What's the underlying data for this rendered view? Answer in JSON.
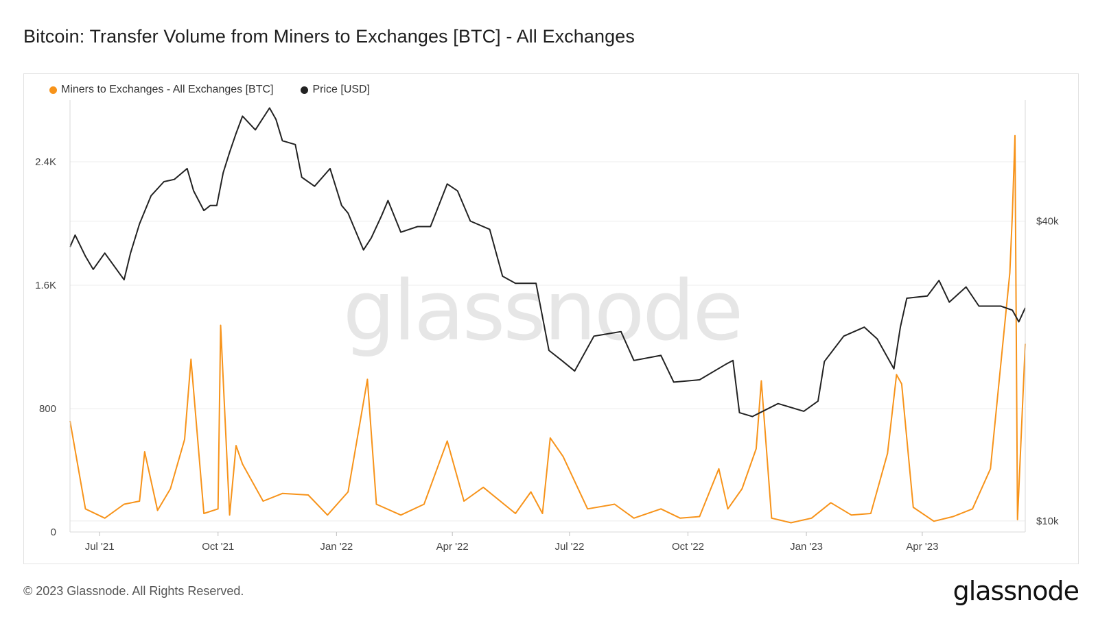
{
  "title": "Bitcoin: Transfer Volume from Miners to Exchanges [BTC] - All Exchanges",
  "legend": {
    "series_a": "Miners to Exchanges - All Exchanges [BTC]",
    "series_b": "Price [USD]"
  },
  "watermark": "glassnode",
  "footer": {
    "copyright": "© 2023 Glassnode. All Rights Reserved.",
    "brand": "glassnode"
  },
  "colors": {
    "volume": "#f7931a",
    "price": "#222222",
    "grid": "#ececec"
  },
  "chart_data": {
    "type": "line",
    "x_range": [
      "2021-06-08",
      "2023-06-20"
    ],
    "x_ticks": [
      {
        "label": "Jul '21",
        "date": "2021-07-01"
      },
      {
        "label": "Oct '21",
        "date": "2021-10-01"
      },
      {
        "label": "Jan '22",
        "date": "2022-01-01"
      },
      {
        "label": "Apr '22",
        "date": "2022-04-01"
      },
      {
        "label": "Jul '22",
        "date": "2022-07-01"
      },
      {
        "label": "Oct '22",
        "date": "2022-10-01"
      },
      {
        "label": "Jan '23",
        "date": "2023-01-01"
      },
      {
        "label": "Apr '23",
        "date": "2023-04-01"
      }
    ],
    "y_left": {
      "ticks": [
        "0",
        "800",
        "1.6K",
        "2.4K"
      ],
      "tick_values": [
        0,
        800,
        1600,
        2400
      ],
      "range": [
        0,
        2800
      ]
    },
    "y_right": {
      "ticks": [
        "$10k",
        "$40k"
      ],
      "tick_values": [
        10000,
        40000
      ],
      "scale": "log",
      "range": [
        9500,
        70000
      ]
    },
    "series": [
      {
        "name": "Miners to Exchanges - All Exchanges [BTC]",
        "axis": "left",
        "points": [
          [
            "2021-06-08",
            720
          ],
          [
            "2021-06-20",
            150
          ],
          [
            "2021-07-05",
            90
          ],
          [
            "2021-07-20",
            180
          ],
          [
            "2021-08-01",
            200
          ],
          [
            "2021-08-05",
            520
          ],
          [
            "2021-08-15",
            140
          ],
          [
            "2021-08-25",
            280
          ],
          [
            "2021-09-05",
            600
          ],
          [
            "2021-09-10",
            1120
          ],
          [
            "2021-09-20",
            120
          ],
          [
            "2021-10-01",
            150
          ],
          [
            "2021-10-03",
            1340
          ],
          [
            "2021-10-10",
            110
          ],
          [
            "2021-10-15",
            560
          ],
          [
            "2021-10-20",
            440
          ],
          [
            "2021-11-05",
            200
          ],
          [
            "2021-11-20",
            250
          ],
          [
            "2021-12-10",
            240
          ],
          [
            "2021-12-25",
            110
          ],
          [
            "2022-01-10",
            260
          ],
          [
            "2022-01-25",
            990
          ],
          [
            "2022-02-01",
            180
          ],
          [
            "2022-02-20",
            110
          ],
          [
            "2022-03-10",
            180
          ],
          [
            "2022-03-28",
            590
          ],
          [
            "2022-04-10",
            200
          ],
          [
            "2022-04-25",
            290
          ],
          [
            "2022-05-20",
            120
          ],
          [
            "2022-06-01",
            260
          ],
          [
            "2022-06-10",
            120
          ],
          [
            "2022-06-16",
            610
          ],
          [
            "2022-06-26",
            490
          ],
          [
            "2022-07-15",
            150
          ],
          [
            "2022-08-05",
            180
          ],
          [
            "2022-08-20",
            90
          ],
          [
            "2022-09-10",
            150
          ],
          [
            "2022-09-25",
            90
          ],
          [
            "2022-10-10",
            100
          ],
          [
            "2022-10-25",
            410
          ],
          [
            "2022-11-01",
            150
          ],
          [
            "2022-11-12",
            280
          ],
          [
            "2022-11-23",
            540
          ],
          [
            "2022-11-27",
            980
          ],
          [
            "2022-12-05",
            90
          ],
          [
            "2022-12-20",
            60
          ],
          [
            "2023-01-05",
            90
          ],
          [
            "2023-01-20",
            190
          ],
          [
            "2023-02-05",
            110
          ],
          [
            "2023-02-20",
            120
          ],
          [
            "2023-03-05",
            510
          ],
          [
            "2023-03-12",
            1020
          ],
          [
            "2023-03-16",
            960
          ],
          [
            "2023-03-25",
            160
          ],
          [
            "2023-04-10",
            70
          ],
          [
            "2023-04-25",
            100
          ],
          [
            "2023-05-10",
            150
          ],
          [
            "2023-05-24",
            410
          ],
          [
            "2023-06-08",
            1680
          ],
          [
            "2023-06-10",
            2060
          ],
          [
            "2023-06-12",
            2570
          ],
          [
            "2023-06-14",
            80
          ],
          [
            "2023-06-20",
            1220
          ]
        ]
      },
      {
        "name": "Price [USD]",
        "axis": "right",
        "points": [
          [
            "2021-06-08",
            35500
          ],
          [
            "2021-06-12",
            37500
          ],
          [
            "2021-06-20",
            34000
          ],
          [
            "2021-06-26",
            32000
          ],
          [
            "2021-07-05",
            34500
          ],
          [
            "2021-07-20",
            30500
          ],
          [
            "2021-07-25",
            34500
          ],
          [
            "2021-08-01",
            39500
          ],
          [
            "2021-08-10",
            45000
          ],
          [
            "2021-08-20",
            48000
          ],
          [
            "2021-08-28",
            48500
          ],
          [
            "2021-09-07",
            51000
          ],
          [
            "2021-09-12",
            46000
          ],
          [
            "2021-09-20",
            42000
          ],
          [
            "2021-09-25",
            43000
          ],
          [
            "2021-09-30",
            43000
          ],
          [
            "2021-10-05",
            50000
          ],
          [
            "2021-10-10",
            55000
          ],
          [
            "2021-10-15",
            60000
          ],
          [
            "2021-10-20",
            65000
          ],
          [
            "2021-10-30",
            61000
          ],
          [
            "2021-11-10",
            67500
          ],
          [
            "2021-11-15",
            64000
          ],
          [
            "2021-11-20",
            58000
          ],
          [
            "2021-11-30",
            57000
          ],
          [
            "2021-12-05",
            49000
          ],
          [
            "2021-12-15",
            47000
          ],
          [
            "2021-12-27",
            51000
          ],
          [
            "2022-01-05",
            43000
          ],
          [
            "2022-01-10",
            41500
          ],
          [
            "2022-01-22",
            35000
          ],
          [
            "2022-01-28",
            37000
          ],
          [
            "2022-02-05",
            41000
          ],
          [
            "2022-02-10",
            44000
          ],
          [
            "2022-02-20",
            38000
          ],
          [
            "2022-03-05",
            39000
          ],
          [
            "2022-03-15",
            39000
          ],
          [
            "2022-03-28",
            47500
          ],
          [
            "2022-04-05",
            46000
          ],
          [
            "2022-04-15",
            40000
          ],
          [
            "2022-04-30",
            38500
          ],
          [
            "2022-05-10",
            31000
          ],
          [
            "2022-05-20",
            30000
          ],
          [
            "2022-06-05",
            30000
          ],
          [
            "2022-06-15",
            22000
          ],
          [
            "2022-06-25",
            21000
          ],
          [
            "2022-07-05",
            20000
          ],
          [
            "2022-07-20",
            23500
          ],
          [
            "2022-08-10",
            24000
          ],
          [
            "2022-08-20",
            21000
          ],
          [
            "2022-09-10",
            21500
          ],
          [
            "2022-09-20",
            19000
          ],
          [
            "2022-10-10",
            19200
          ],
          [
            "2022-10-30",
            20600
          ],
          [
            "2022-11-05",
            21000
          ],
          [
            "2022-11-10",
            16500
          ],
          [
            "2022-11-20",
            16200
          ],
          [
            "2022-12-10",
            17200
          ],
          [
            "2022-12-30",
            16600
          ],
          [
            "2023-01-10",
            17400
          ],
          [
            "2023-01-15",
            20900
          ],
          [
            "2023-01-30",
            23500
          ],
          [
            "2023-02-15",
            24500
          ],
          [
            "2023-02-25",
            23200
          ],
          [
            "2023-03-10",
            20200
          ],
          [
            "2023-03-15",
            24500
          ],
          [
            "2023-03-20",
            28000
          ],
          [
            "2023-04-05",
            28300
          ],
          [
            "2023-04-14",
            30400
          ],
          [
            "2023-04-22",
            27500
          ],
          [
            "2023-05-05",
            29500
          ],
          [
            "2023-05-15",
            27000
          ],
          [
            "2023-06-01",
            27000
          ],
          [
            "2023-06-10",
            26500
          ],
          [
            "2023-06-15",
            25100
          ],
          [
            "2023-06-20",
            26800
          ]
        ]
      }
    ]
  }
}
